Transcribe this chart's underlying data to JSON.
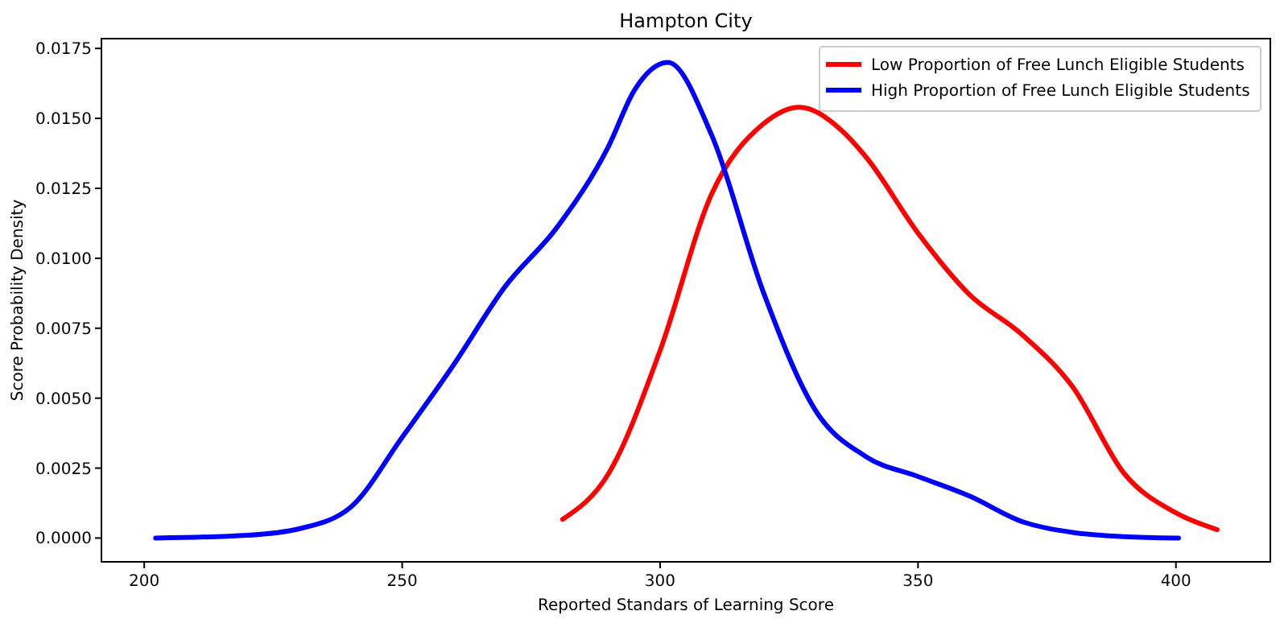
{
  "chart_data": {
    "type": "line",
    "title": "Hampton City",
    "xlabel": "Reported Standars of Learning Score",
    "ylabel": "Score Probability Density",
    "xlim": [
      191.7,
      418.3
    ],
    "ylim": [
      -0.00085,
      0.01785
    ],
    "xticks": [
      200,
      250,
      300,
      350,
      400
    ],
    "yticks": [
      {
        "value": 0,
        "label": "0.0000"
      },
      {
        "value": 0.0025,
        "label": "0.0025"
      },
      {
        "value": 0.005,
        "label": "0.0050"
      },
      {
        "value": 0.0075,
        "label": "0.0075"
      },
      {
        "value": 0.01,
        "label": "0.0100"
      },
      {
        "value": 0.0125,
        "label": "0.0125"
      },
      {
        "value": 0.015,
        "label": "0.0150"
      },
      {
        "value": 0.0175,
        "label": "0.0175"
      }
    ],
    "legend": "top right",
    "grid": false,
    "marker": "none",
    "line_style": "solid",
    "series": [
      {
        "name": "Low Proportion of Free Lunch Eligible Students",
        "color": "#ff0000",
        "x": [
          281.1,
          290,
          300,
          310,
          320,
          327,
          335,
          340,
          350,
          360,
          370,
          380,
          390,
          400,
          408
        ],
        "values": [
          0.00067,
          0.0023,
          0.0067,
          0.0123,
          0.0148,
          0.0154,
          0.0146,
          0.0136,
          0.0109,
          0.0087,
          0.0073,
          0.0054,
          0.0023,
          0.0009,
          0.0003
        ]
      },
      {
        "name": "High Proportion of Free Lunch Eligible Students",
        "color": "#0000ff",
        "x": [
          202.2,
          220,
          230,
          240,
          250,
          260,
          270,
          280,
          290,
          295,
          301.5,
          310,
          320,
          330,
          340,
          350,
          360,
          370,
          380,
          390,
          400.5
        ],
        "values": [
          0,
          0.0001,
          0.00033,
          0.0011,
          0.0036,
          0.0062,
          0.009,
          0.0111,
          0.014,
          0.016,
          0.017,
          0.0144,
          0.0088,
          0.0046,
          0.0029,
          0.0022,
          0.0015,
          0.0006,
          0.0002,
          5e-05,
          0
        ]
      }
    ]
  }
}
